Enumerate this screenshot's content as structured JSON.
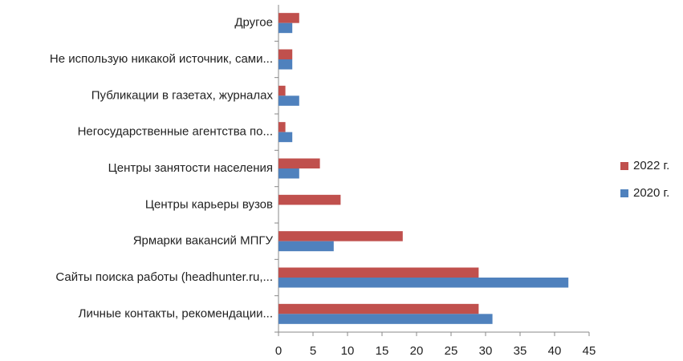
{
  "chart_data": {
    "type": "bar",
    "orientation": "horizontal",
    "categories": [
      "Личные контакты, рекомендации...",
      "Сайты поиска работы (headhunter.ru,...",
      "Ярмарки вакансий МПГУ",
      "Центры карьеры вузов",
      "Центры занятости населения",
      "Негосударственные агентства по...",
      "Публикации в газетах, журналах",
      "Не использую никакой источник, сами...",
      "Другое"
    ],
    "series": [
      {
        "name": "2022 г.",
        "color": "#c0504d",
        "values": [
          29,
          29,
          18,
          9,
          6,
          1,
          1,
          2,
          3
        ]
      },
      {
        "name": "2020 г.",
        "color": "#4f81bd",
        "values": [
          31,
          42,
          8,
          0,
          3,
          2,
          3,
          2,
          2
        ]
      }
    ],
    "xlim": [
      0,
      45
    ],
    "xticks": [
      0,
      5,
      10,
      15,
      20,
      25,
      30,
      35,
      40,
      45
    ],
    "grid": false,
    "legend": "right"
  }
}
